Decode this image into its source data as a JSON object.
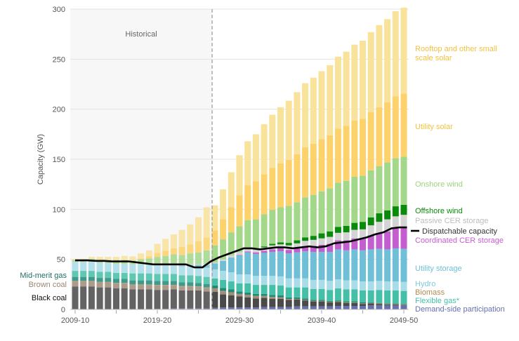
{
  "chart_data": {
    "type": "bar",
    "stacked": true,
    "ylabel": "Capacity (GW)",
    "ylim": [
      0,
      300
    ],
    "yticks": [
      0,
      50,
      100,
      150,
      200,
      250,
      300
    ],
    "grid": true,
    "historical_label": "Historical",
    "historical_end": "2025-26",
    "xtick_labels": [
      "2009-10",
      "2019-20",
      "2029-30",
      "2039-40",
      "2049-50"
    ],
    "categories": [
      "2009-10",
      "2010-11",
      "2011-12",
      "2012-13",
      "2013-14",
      "2014-15",
      "2015-16",
      "2016-17",
      "2017-18",
      "2018-19",
      "2019-20",
      "2020-21",
      "2021-22",
      "2022-23",
      "2023-24",
      "2024-25",
      "2025-26",
      "2026-27",
      "2027-28",
      "2028-29",
      "2029-30",
      "2030-31",
      "2031-32",
      "2032-33",
      "2033-34",
      "2034-35",
      "2035-36",
      "2036-37",
      "2037-38",
      "2038-39",
      "2039-40",
      "2040-41",
      "2041-42",
      "2042-43",
      "2043-44",
      "2044-45",
      "2045-46",
      "2046-47",
      "2047-48",
      "2048-49",
      "2049-50"
    ],
    "series": [
      {
        "name": "Demand-side participation",
        "color": "#6670b0",
        "values": [
          0,
          0,
          0,
          0,
          0,
          0,
          0,
          0,
          0,
          0,
          0.5,
          0.5,
          1,
          1,
          1,
          1,
          1,
          1.5,
          2,
          2,
          2,
          2,
          2,
          2.5,
          2.5,
          2.5,
          2.5,
          3,
          3,
          3,
          3,
          3,
          3.5,
          3.5,
          3.5,
          3.5,
          4,
          4,
          4,
          4,
          4
        ]
      },
      {
        "name": "Black coal",
        "color": "#4a4a4a",
        "values": [
          23,
          23,
          23,
          22,
          22,
          21,
          21,
          20,
          20,
          20,
          19,
          19,
          19,
          18,
          18,
          18,
          17,
          16,
          13,
          12,
          11,
          10,
          9,
          9,
          8,
          8,
          7,
          7,
          6,
          5,
          5,
          4,
          4,
          3,
          3,
          2,
          2,
          1.5,
          1,
          1,
          0.5
        ]
      },
      {
        "name": "Brown coal",
        "color": "#a08c78",
        "values": [
          5,
          5,
          5,
          5,
          5,
          5,
          5,
          4.5,
          4.5,
          4.5,
          4.5,
          4.5,
          4,
          4,
          4,
          3.5,
          3.5,
          3,
          3,
          2.5,
          2,
          2,
          2,
          1.5,
          1.5,
          1,
          0.5,
          0,
          0,
          0,
          0,
          0,
          0,
          0,
          0,
          0,
          0,
          0,
          0,
          0,
          0
        ]
      },
      {
        "name": "Biomass",
        "color": "#b08a50",
        "values": [
          0.5,
          0.5,
          0.5,
          0.5,
          0.5,
          0.5,
          0.5,
          0.5,
          0.5,
          0.5,
          0.5,
          0.5,
          0.5,
          0.5,
          0.5,
          0.5,
          0.5,
          0.5,
          0.5,
          0.5,
          0.5,
          0.5,
          0.5,
          0.5,
          0.5,
          0.5,
          0.5,
          0.5,
          0.5,
          0.5,
          0.5,
          0.5,
          0.5,
          0.5,
          0.5,
          0.5,
          0.5,
          0.5,
          0.5,
          0.5,
          0.5
        ]
      },
      {
        "name": "Mid-merit gas",
        "color": "#1f8a7a",
        "values": [
          4,
          4,
          4,
          4,
          4,
          4,
          4,
          4,
          4,
          4,
          4,
          4,
          4,
          3.5,
          3.5,
          3.5,
          3.5,
          3,
          3,
          3,
          2.5,
          2.5,
          2,
          2,
          2,
          2,
          1.5,
          1.5,
          1.5,
          1,
          1,
          1,
          1,
          1,
          1,
          1,
          0.5,
          0.5,
          0.5,
          0.5,
          0.5
        ]
      },
      {
        "name": "Flexible gas*",
        "color": "#45c0a8",
        "values": [
          6,
          6,
          6,
          6,
          6,
          6,
          6,
          7,
          7,
          7,
          7,
          7,
          7,
          7,
          7,
          7,
          7,
          7,
          8,
          8,
          8,
          9,
          9,
          9,
          10,
          10,
          10,
          10,
          11,
          11,
          11,
          11,
          12,
          12,
          12,
          12,
          12,
          13,
          13,
          13,
          13
        ]
      },
      {
        "name": "Hydro",
        "color": "#a8dce8",
        "values": [
          9,
          9,
          9,
          9,
          9,
          9,
          9,
          9,
          9,
          9,
          9,
          9,
          9,
          9,
          9,
          9,
          9,
          9,
          9,
          9,
          9,
          9,
          9,
          9,
          9,
          9,
          9,
          9,
          9,
          9,
          9,
          9,
          9,
          9,
          9,
          9,
          9,
          9,
          9,
          9,
          9
        ]
      },
      {
        "name": "Utility storage",
        "color": "#6fbfd6",
        "values": [
          0,
          0,
          0,
          0,
          0,
          0,
          0,
          0,
          0,
          0,
          0.5,
          0.5,
          1,
          1,
          1.5,
          2,
          3,
          6,
          10,
          15,
          19,
          22,
          22,
          23,
          24,
          25,
          25,
          26,
          27,
          28,
          28,
          29,
          30,
          30,
          31,
          31,
          32,
          32,
          32,
          33,
          33
        ]
      },
      {
        "name": "Coordinated CER storage",
        "color": "#c45ed0",
        "values": [
          0,
          0,
          0,
          0,
          0,
          0,
          0,
          0,
          0,
          0,
          0,
          0,
          0,
          0,
          0,
          0,
          0,
          0,
          0,
          0,
          0.5,
          1,
          1.5,
          2,
          2.5,
          3,
          3.5,
          4,
          5,
          6,
          7,
          8,
          9,
          10,
          11,
          12,
          14,
          16,
          18,
          20,
          21
        ]
      },
      {
        "name": "Passive CER storage",
        "color": "#d4d4d4",
        "values": [
          0,
          0,
          0,
          0,
          0,
          0,
          0,
          0,
          0,
          0,
          0.5,
          0.5,
          0.5,
          0.5,
          0.5,
          0.5,
          0.5,
          1,
          1.5,
          2,
          2.5,
          3,
          3,
          3.5,
          4,
          4,
          4.5,
          5,
          5.5,
          6,
          6.5,
          7,
          7.5,
          8,
          8.5,
          9,
          10,
          11,
          12,
          12,
          13
        ]
      },
      {
        "name": "Offshore wind",
        "color": "#0a8a0a",
        "values": [
          0,
          0,
          0,
          0,
          0,
          0,
          0,
          0,
          0,
          0,
          0,
          0,
          0,
          0,
          0,
          0,
          0,
          0,
          0,
          0,
          0,
          0,
          0,
          1,
          1.5,
          2,
          2.5,
          3,
          3.5,
          4,
          5,
          5.5,
          6,
          6.5,
          7,
          7.5,
          8,
          8.5,
          9,
          10,
          10
        ]
      },
      {
        "name": "Onshore wind",
        "color": "#a3d88a",
        "values": [
          2,
          2,
          3,
          3,
          3,
          4,
          4,
          4,
          5,
          6,
          7,
          8,
          9,
          10,
          11,
          12,
          14,
          17,
          20,
          23,
          26,
          28,
          30,
          32,
          34,
          35,
          37,
          38,
          40,
          41,
          42,
          43,
          44,
          45,
          46,
          46,
          47,
          47,
          48,
          48,
          48
        ]
      },
      {
        "name": "Utility solar",
        "color": "#fdd26a",
        "values": [
          0,
          0,
          0,
          0,
          0,
          0,
          0,
          0,
          1,
          2,
          4,
          5,
          6,
          8,
          9,
          11,
          13,
          15,
          20,
          25,
          31,
          35,
          38,
          40,
          42,
          44,
          46,
          48,
          50,
          51,
          52,
          53,
          54,
          55,
          56,
          57,
          58,
          59,
          60,
          62,
          63
        ]
      },
      {
        "name": "Rooftop and other small scale solar",
        "color": "#f9e29a",
        "values": [
          1,
          1,
          2,
          3,
          3,
          3,
          4,
          4,
          5,
          6,
          9,
          12,
          14,
          17,
          20,
          24,
          30,
          25,
          30,
          35,
          40,
          44,
          47,
          50,
          53,
          56,
          59,
          62,
          64,
          66,
          68,
          70,
          72,
          74,
          76,
          78,
          80,
          82,
          83,
          85,
          86
        ]
      }
    ],
    "line": {
      "name": "Dispatchable capacity",
      "color": "#000000",
      "values": [
        49,
        49,
        49,
        48.5,
        48.5,
        48,
        48,
        48,
        47,
        46,
        45,
        45,
        45,
        45,
        45,
        42,
        42,
        48,
        52,
        55,
        58,
        61,
        61,
        60,
        61,
        62,
        62,
        61,
        62,
        63,
        62,
        63,
        66,
        67,
        68,
        70,
        72,
        75,
        77,
        81,
        82
      ]
    },
    "left_labels": [
      {
        "text": "Mid-merit gas",
        "color": "#1f6f66"
      },
      {
        "text": "Brown coal",
        "color": "#9a8672"
      },
      {
        "text": "Black coal",
        "color": "#111111"
      }
    ],
    "right_labels": [
      {
        "text": "Rooftop and other small",
        "color": "#f2c23e"
      },
      {
        "text": "scale solar",
        "color": "#f2c23e"
      },
      {
        "text": "Utility solar",
        "color": "#f2c23e"
      },
      {
        "text": "Onshore wind",
        "color": "#9ed283"
      },
      {
        "text": "Offshore wind",
        "color": "#0a8a0a"
      },
      {
        "text": "Passive CER storage",
        "color": "#bdbdbd"
      },
      {
        "text": "Dispatchable capacity",
        "color": "#333333"
      },
      {
        "text": "Coordinated CER storage",
        "color": "#c45ed0"
      },
      {
        "text": "Utility storage",
        "color": "#6fbfd6"
      },
      {
        "text": "Hydro",
        "color": "#7fc8dc"
      },
      {
        "text": "Biomass",
        "color": "#b08a50"
      },
      {
        "text": "Flexible gas*",
        "color": "#45c0a8"
      },
      {
        "text": "Demand-side participation",
        "color": "#6670b0"
      }
    ]
  }
}
